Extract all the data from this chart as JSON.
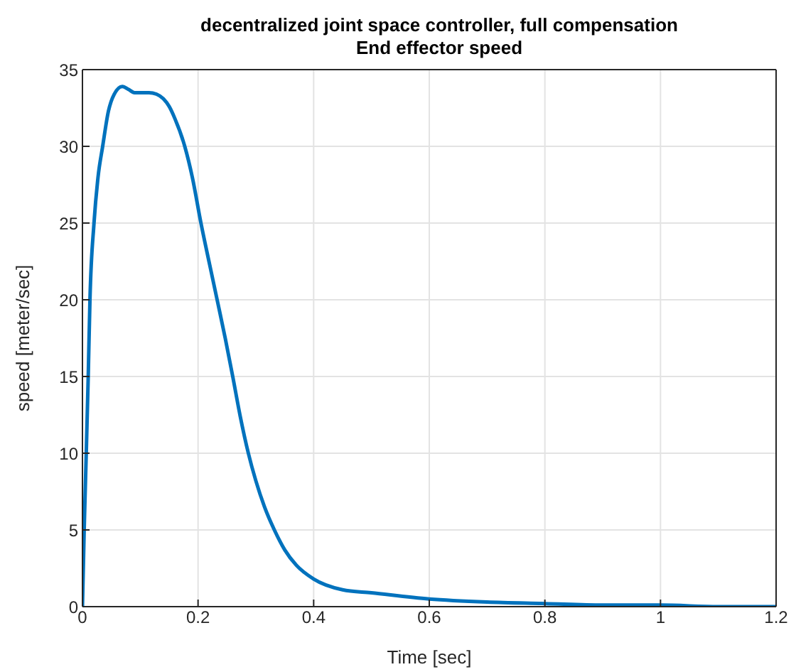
{
  "chart_data": {
    "type": "line",
    "title": "decentralized joint space controller, full compensation\nEnd effector speed",
    "xlabel": "Time [sec]",
    "ylabel": "speed [meter/sec]",
    "x": [
      0,
      0.003,
      0.0066,
      0.01,
      0.013,
      0.02,
      0.027,
      0.035,
      0.045,
      0.055,
      0.069,
      0.08,
      0.09,
      0.1,
      0.115,
      0.128,
      0.14,
      0.15,
      0.16,
      0.177,
      0.19,
      0.205,
      0.22,
      0.233,
      0.247,
      0.26,
      0.273,
      0.287,
      0.3,
      0.315,
      0.332,
      0.35,
      0.37,
      0.4,
      0.45,
      0.5,
      0.6,
      0.7,
      0.8,
      0.9,
      1.0,
      1.1,
      1.2
    ],
    "series": [
      {
        "color": "#0072bd",
        "values": [
          0,
          5,
          10,
          15,
          20,
          25,
          28,
          30,
          32.3,
          33.4,
          33.9,
          33.7,
          33.5,
          33.5,
          33.5,
          33.4,
          33.1,
          32.6,
          31.8,
          30,
          28,
          25,
          22.3,
          20,
          17.5,
          15,
          12.4,
          10,
          8.2,
          6.5,
          5,
          3.7,
          2.7,
          1.8,
          1.1,
          0.9,
          0.5,
          0.3,
          0.2,
          0.1,
          0.1,
          0,
          0
        ]
      }
    ],
    "xlim": [
      0,
      1.2
    ],
    "ylim": [
      0,
      35
    ],
    "xticks": [
      0,
      0.2,
      0.4,
      0.6,
      0.8,
      1,
      1.2
    ],
    "yticks": [
      0,
      5,
      10,
      15,
      20,
      25,
      30,
      35
    ],
    "grid": true,
    "marker": "none",
    "line_style": "solid"
  }
}
